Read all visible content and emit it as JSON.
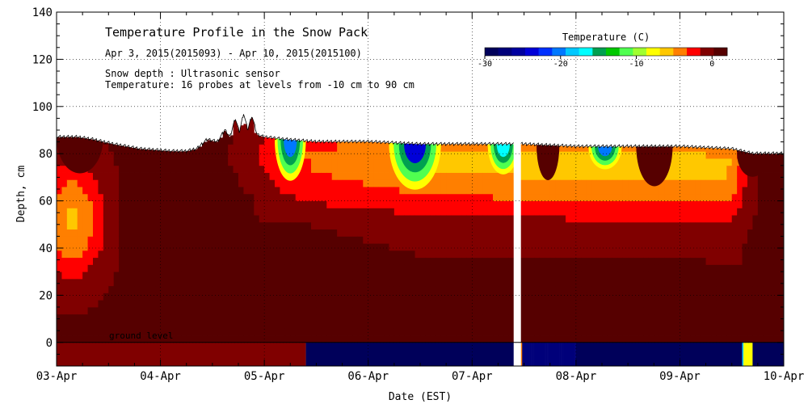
{
  "chart_data": {
    "type": "heatmap",
    "title": "Temperature Profile in the Snow Pack",
    "subtitle": "Apr  3, 2015(2015093) - Apr 10, 2015(2015100)",
    "notes": [
      "Snow depth : Ultrasonic sensor",
      "Temperature: 16 probes at levels from -10 cm to 90 cm"
    ],
    "xlabel": "Date (EST)",
    "ylabel": "Depth, cm",
    "x_tick_labels": [
      "03-Apr",
      "04-Apr",
      "05-Apr",
      "06-Apr",
      "07-Apr",
      "08-Apr",
      "09-Apr",
      "10-Apr"
    ],
    "y_ticks": [
      0,
      20,
      40,
      60,
      80,
      100,
      120,
      140
    ],
    "ylim": [
      -10,
      140
    ],
    "xlim_days": [
      0,
      7
    ],
    "ground_label": "ground level",
    "colorbar": {
      "title": "Temperature (C)",
      "range": [
        -30,
        2
      ],
      "tick_values": [
        -30,
        -20,
        -10,
        0
      ],
      "tick_labels": [
        "-30",
        "-20",
        "-10",
        "0"
      ],
      "colors": [
        "#00005a",
        "#00007a",
        "#0000a0",
        "#0000d8",
        "#0030ff",
        "#0078ff",
        "#00c8ff",
        "#00ffff",
        "#00a050",
        "#00c800",
        "#50ff50",
        "#a0ff30",
        "#ffff00",
        "#ffc800",
        "#ff7f00",
        "#ff0000",
        "#800000",
        "#560000"
      ]
    },
    "snow_depth": [
      {
        "day": 0.0,
        "depth": 87
      },
      {
        "day": 0.2,
        "depth": 87
      },
      {
        "day": 0.35,
        "depth": 86
      },
      {
        "day": 0.55,
        "depth": 84
      },
      {
        "day": 0.8,
        "depth": 82
      },
      {
        "day": 1.1,
        "depth": 81
      },
      {
        "day": 1.25,
        "depth": 81
      },
      {
        "day": 1.35,
        "depth": 82
      },
      {
        "day": 1.45,
        "depth": 86
      },
      {
        "day": 1.55,
        "depth": 85
      },
      {
        "day": 1.62,
        "depth": 90
      },
      {
        "day": 1.67,
        "depth": 87
      },
      {
        "day": 1.72,
        "depth": 95
      },
      {
        "day": 1.76,
        "depth": 89
      },
      {
        "day": 1.8,
        "depth": 97
      },
      {
        "day": 1.84,
        "depth": 90
      },
      {
        "day": 1.88,
        "depth": 96
      },
      {
        "day": 1.93,
        "depth": 88
      },
      {
        "day": 2.0,
        "depth": 87
      },
      {
        "day": 2.2,
        "depth": 86
      },
      {
        "day": 2.5,
        "depth": 85
      },
      {
        "day": 3.0,
        "depth": 85
      },
      {
        "day": 3.5,
        "depth": 84
      },
      {
        "day": 4.0,
        "depth": 84
      },
      {
        "day": 4.5,
        "depth": 84
      },
      {
        "day": 5.0,
        "depth": 83
      },
      {
        "day": 5.5,
        "depth": 83
      },
      {
        "day": 6.0,
        "depth": 83
      },
      {
        "day": 6.5,
        "depth": 82
      },
      {
        "day": 6.7,
        "depth": 80
      },
      {
        "day": 7.0,
        "depth": 80
      }
    ],
    "gap": {
      "start_day": 4.4,
      "end_day": 4.47
    },
    "surface_cold_spots": [
      {
        "day": 2.1,
        "width_days": 0.3,
        "depth": 75,
        "min_temp": -20
      },
      {
        "day": 3.2,
        "width_days": 0.5,
        "depth": 72,
        "min_temp": -24
      },
      {
        "day": 4.15,
        "width_days": 0.3,
        "depth": 76,
        "min_temp": -17
      },
      {
        "day": 5.12,
        "width_days": 0.32,
        "depth": 77,
        "min_temp": -21
      }
    ],
    "surface_warm_spots": [
      {
        "day": 0.0,
        "width_days": 0.45,
        "depth": 76,
        "temp": 2
      },
      {
        "day": 0.65,
        "width_days": 0.5,
        "depth": 78,
        "temp": 2
      },
      {
        "day": 4.62,
        "width_days": 0.22,
        "depth": 73,
        "temp": 2
      },
      {
        "day": 5.58,
        "width_days": 0.35,
        "depth": 71,
        "temp": 2
      },
      {
        "day": 6.55,
        "width_days": 0.3,
        "depth": 73,
        "temp": 2
      }
    ],
    "ground_temperature": [
      {
        "start_day": 0.0,
        "end_day": 2.4,
        "temp": 0
      },
      {
        "start_day": 2.4,
        "end_day": 4.47,
        "temp": -30
      },
      {
        "start_day": 4.47,
        "end_day": 5.0,
        "temp": "mixed"
      },
      {
        "start_day": 5.0,
        "end_day": 6.6,
        "temp": -30
      },
      {
        "start_day": 6.6,
        "end_day": 6.7,
        "temp": "mixed"
      },
      {
        "start_day": 6.7,
        "end_day": 7.0,
        "temp": -30
      }
    ]
  }
}
